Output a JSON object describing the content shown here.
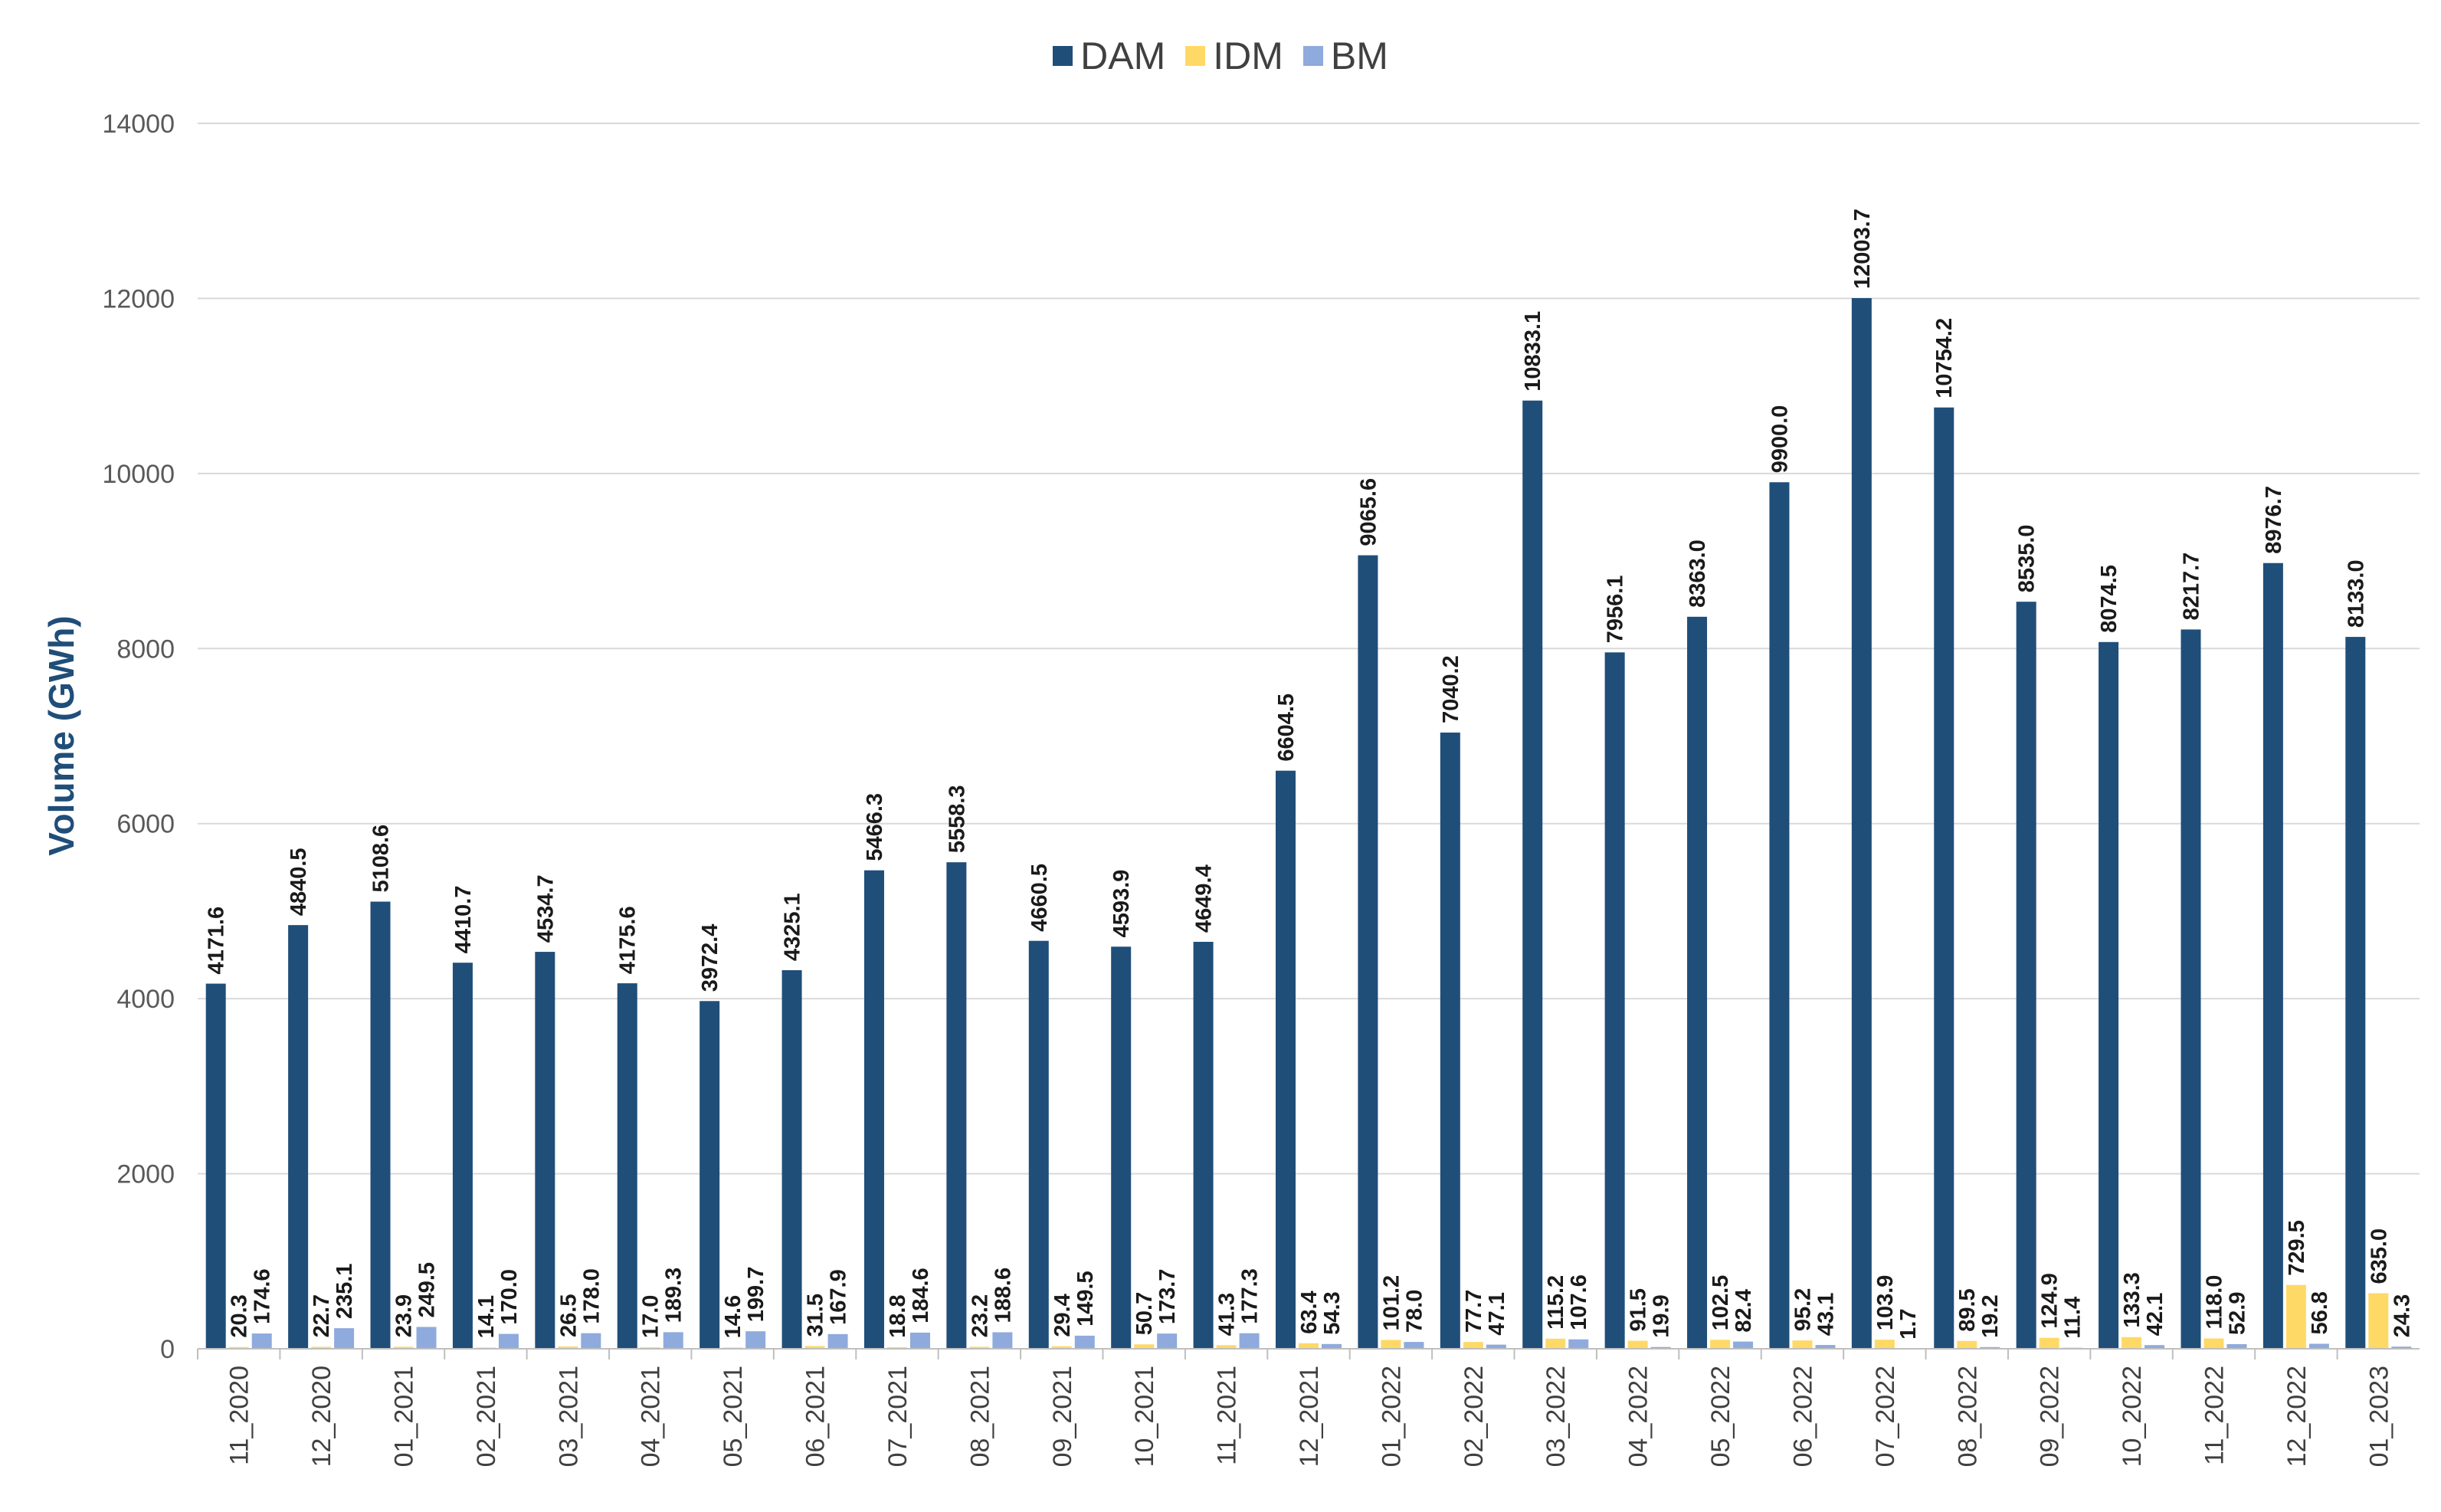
{
  "chart_data": {
    "type": "bar",
    "title": "",
    "xlabel": "",
    "ylabel": "Volume (GWh)",
    "ylim": [
      0,
      14000
    ],
    "yticks": [
      0,
      2000,
      4000,
      6000,
      8000,
      10000,
      12000,
      14000
    ],
    "ytick_labels": [
      "0",
      "2000",
      "4000",
      "6000",
      "8000",
      "10000",
      "12000",
      "14000"
    ],
    "grid": true,
    "legend_position": "top-center",
    "categories": [
      "11_2020",
      "12_2020",
      "01_2021",
      "02_2021",
      "03_2021",
      "04_2021",
      "05_2021",
      "06_2021",
      "07_2021",
      "08_2021",
      "09_2021",
      "10_2021",
      "11_2021",
      "12_2021",
      "01_2022",
      "02_2022",
      "03_2022",
      "04_2022",
      "05_2022",
      "06_2022",
      "07_2022",
      "08_2022",
      "09_2022",
      "10_2022",
      "11_2022",
      "12_2022",
      "01_2023"
    ],
    "series": [
      {
        "name": "DAM",
        "color": "#1f4e79",
        "values": [
          4171.6,
          4840.5,
          5108.6,
          4410.7,
          4534.7,
          4175.6,
          3972.4,
          4325.1,
          5466.3,
          5558.3,
          4660.5,
          4593.9,
          4649.4,
          6604.5,
          9065.6,
          7040.2,
          10833.1,
          7956.1,
          8363.0,
          9900.0,
          12003.7,
          10754.2,
          8535.0,
          8074.5,
          8217.7,
          8976.7,
          8133.0
        ],
        "labels": [
          "4171.6",
          "4840.5",
          "5108.6",
          "4410.7",
          "4534.7",
          "4175.6",
          "3972.4",
          "4325.1",
          "5466.3",
          "5558.3",
          "4660.5",
          "4593.9",
          "4649.4",
          "6604.5",
          "9065.6",
          "7040.2",
          "10833.1",
          "7956.1",
          "8363.0",
          "9900.0",
          "12003.7",
          "10754.2",
          "8535.0",
          "8074.5",
          "8217.7",
          "8976.7",
          "8133.0"
        ]
      },
      {
        "name": "IDM",
        "color": "#ffd966",
        "values": [
          20.3,
          22.7,
          23.9,
          14.1,
          26.5,
          17.0,
          14.6,
          31.5,
          18.8,
          23.2,
          29.4,
          50.7,
          41.3,
          63.4,
          101.2,
          77.7,
          115.2,
          91.5,
          102.5,
          95.2,
          103.9,
          89.5,
          124.9,
          133.3,
          118.0,
          729.5,
          635.0
        ],
        "labels": [
          "20.3",
          "22.7",
          "23.9",
          "14.1",
          "26.5",
          "17.0",
          "14.6",
          "31.5",
          "18.8",
          "23.2",
          "29.4",
          "50.7",
          "41.3",
          "63.4",
          "101.2",
          "77.7",
          "115.2",
          "91.5",
          "102.5",
          "95.2",
          "103.9",
          "89.5",
          "124.9",
          "133.3",
          "118.0",
          "729.5",
          "635.0"
        ]
      },
      {
        "name": "BM",
        "color": "#8faadc",
        "values": [
          174.6,
          235.1,
          249.5,
          170.0,
          178.0,
          189.3,
          199.7,
          167.9,
          184.6,
          188.6,
          149.5,
          173.7,
          177.3,
          54.3,
          78.0,
          47.1,
          107.6,
          19.9,
          82.4,
          43.1,
          1.7,
          19.2,
          11.4,
          42.1,
          52.9,
          56.8,
          24.3
        ],
        "labels": [
          "174.6",
          "235.1",
          "249.5",
          "170.0",
          "178.0",
          "189.3",
          "199.7",
          "167.9",
          "184.6",
          "188.6",
          "149.5",
          "173.7",
          "177.3",
          "54.3",
          "78.0",
          "47.1",
          "107.6",
          "19.9",
          "82.4",
          "43.1",
          "1.7",
          "19.2",
          "11.4",
          "42.1",
          "52.9",
          "56.8",
          "24.3"
        ]
      }
    ]
  },
  "colors": {
    "axis_title": "#1f4e79",
    "gridline": "#d9d9d9",
    "axis_line": "#bfbfbf"
  }
}
